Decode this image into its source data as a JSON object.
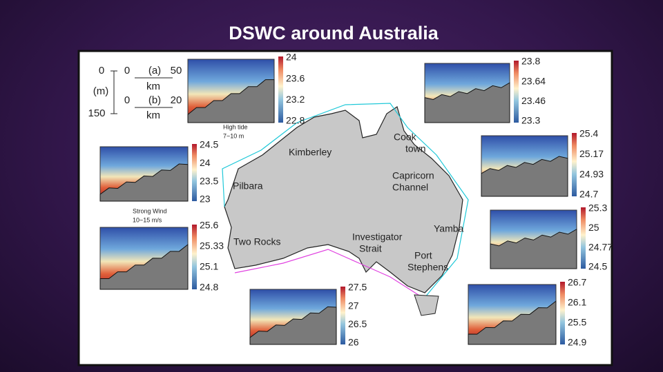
{
  "title": "DSWC around Australia",
  "scale_key": {
    "depth_top": "0",
    "depth_unit": "(m)",
    "depth_bottom": "150",
    "a_start": "0",
    "a_label": "(a)",
    "a_end": "50",
    "a_unit": "km",
    "b_start": "0",
    "b_label": "(b)",
    "b_end": "20",
    "b_unit": "km"
  },
  "places": [
    {
      "lines": [
        "Kimberley"
      ]
    },
    {
      "lines": [
        "Cook",
        "town"
      ]
    },
    {
      "lines": [
        "Capricorn",
        "Channel"
      ]
    },
    {
      "lines": [
        "Pilbara"
      ]
    },
    {
      "lines": [
        "Two Rocks"
      ]
    },
    {
      "lines": [
        "Investigator",
        "Strait"
      ]
    },
    {
      "lines": [
        "Yamba"
      ]
    },
    {
      "lines": [
        "Port",
        "Stephens"
      ]
    }
  ],
  "annotations": [
    {
      "lines": [
        "High tide",
        "7~10 m"
      ]
    },
    {
      "lines": [
        "Strong Wind",
        "10~15 m/s"
      ]
    }
  ],
  "panels": [
    {
      "colorbar_ticks": [
        24,
        23.6,
        23.2,
        22.8
      ]
    },
    {
      "colorbar_ticks": [
        23.8,
        23.64,
        23.46,
        23.3
      ]
    },
    {
      "colorbar_ticks": [
        24.5,
        24,
        23.5,
        23
      ]
    },
    {
      "colorbar_ticks": [
        25.6,
        25.33,
        25.1,
        24.8
      ]
    },
    {
      "colorbar_ticks": [
        25.4,
        25.17,
        24.93,
        24.7
      ]
    },
    {
      "colorbar_ticks": [
        25.3,
        25,
        24.77,
        24.5
      ]
    },
    {
      "colorbar_ticks": [
        27.5,
        27,
        26.5,
        26
      ]
    },
    {
      "colorbar_ticks": [
        26.7,
        26.1,
        25.5,
        24.9
      ]
    }
  ]
}
